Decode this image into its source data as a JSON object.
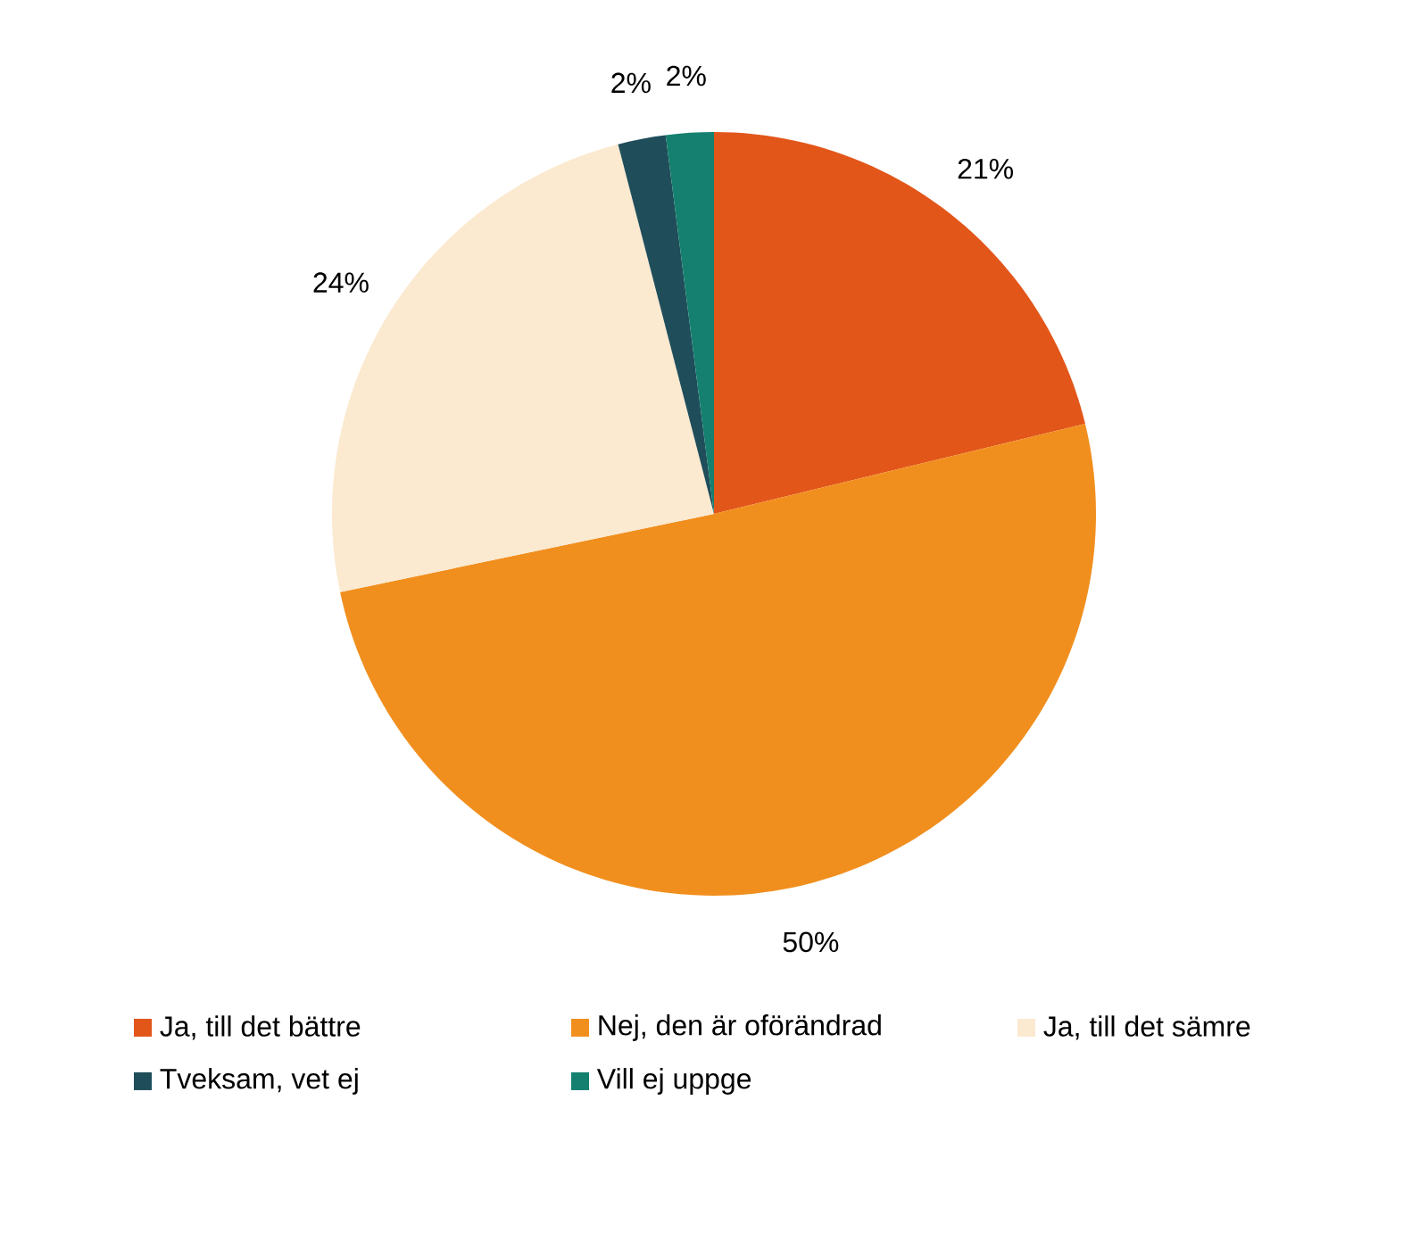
{
  "chart_data": {
    "type": "pie",
    "categories": [
      "Ja, till det bättre",
      "Nej, den är oförändrad",
      "Ja, till det sämre",
      "Tveksam, vet ej",
      "Vill ej uppge"
    ],
    "values": [
      21,
      50,
      24,
      2,
      2
    ],
    "colors": [
      "#e2561a",
      "#f18f1e",
      "#fbe9d0",
      "#1f4e5a",
      "#15806f"
    ],
    "value_labels": [
      "21%",
      "50%",
      "24%",
      "2%",
      "2%"
    ],
    "legend": "bottom"
  }
}
